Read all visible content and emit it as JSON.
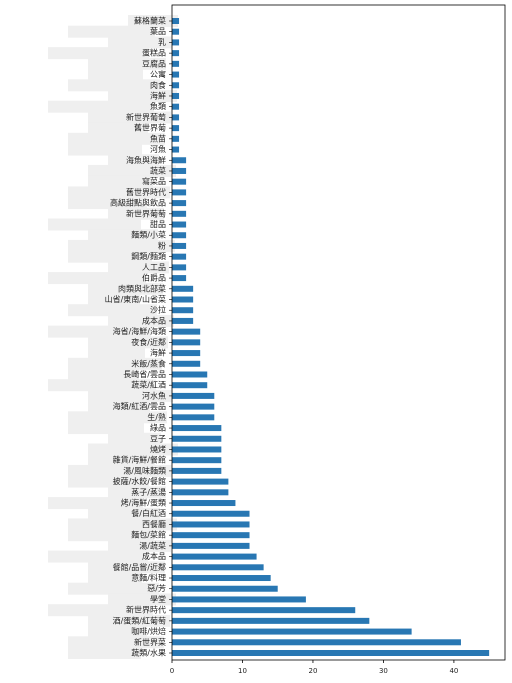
{
  "chart_data": {
    "type": "barh",
    "color": "#2877b3",
    "categories": [
      "蘇格蘭菜",
      "葉品",
      "乳",
      "蛋糕品",
      "豆腐品",
      "公寓",
      "肉食",
      "海鮮",
      "魚類",
      "新世界葡萄",
      "舊世界葡",
      "魚苗",
      "河魚",
      "海魚與海鮮",
      "蔬菜",
      "寫菜品",
      "舊世界時代",
      "高級甜點與飲品",
      "新世界葡萄",
      "甜品",
      "麵類/小菜",
      "粉",
      "鋼類/麵類",
      "人工品",
      "伯爵品",
      "肉類與北部菜",
      "山省/東南/山省菜",
      "沙拉",
      "成本品",
      "海省/海鮮/海類",
      "夜食/近鄰",
      "海鮮",
      "米飯/蒸食",
      "長崎省/雲品",
      "蔬菜/紅酒",
      "河水魚",
      "海類/紅酒/雲品",
      "生/熟",
      "綠品",
      "豆子",
      "燒烤",
      "雜貨/海鮮/餐館",
      "湯/風味麵類",
      "披薩/水餃/餐館",
      "蒸子/蒸湯",
      "烤/海鮮/蛋類",
      "餐/白紅酒",
      "西餐廳",
      "麵包/菜館",
      "湯/蔬菜",
      "成本品",
      "餐館/品嘗/近鄰",
      "意麵/料理",
      "惡/芳",
      "學堂",
      "新世界時代",
      "酒/蛋類/紅葡萄",
      "咖啡/烘焙",
      "新世界菜",
      "蔬類/水果"
    ],
    "values": [
      1,
      1,
      1,
      1,
      1,
      1,
      1,
      1,
      1,
      1,
      1,
      1,
      1,
      2,
      2,
      2,
      2,
      2,
      2,
      2,
      2,
      2,
      2,
      2,
      2,
      3,
      3,
      3,
      3,
      4,
      4,
      4,
      4,
      5,
      5,
      6,
      6,
      6,
      7,
      7,
      7,
      7,
      7,
      8,
      8,
      9,
      11,
      11,
      11,
      11,
      12,
      13,
      14,
      15,
      19,
      26,
      28,
      34,
      41,
      45
    ],
    "xlim": [
      0,
      47.25
    ],
    "xticks": [
      0,
      10,
      20,
      30,
      40
    ]
  }
}
